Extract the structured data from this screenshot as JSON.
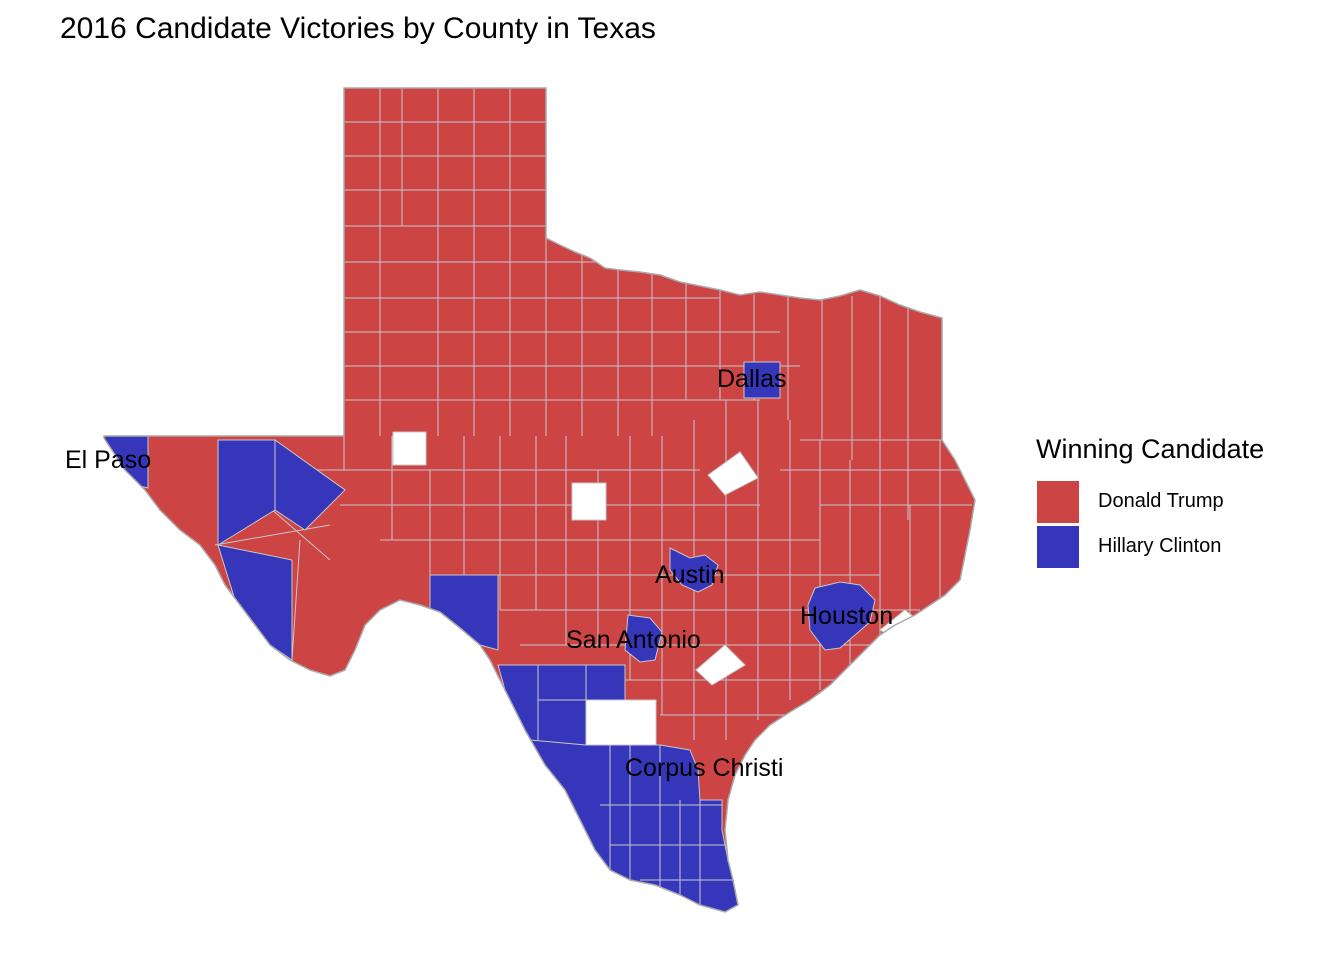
{
  "title": "2016 Candidate Victories by County in Texas",
  "legend": {
    "title": "Winning Candidate",
    "items": [
      {
        "label": "Donald Trump",
        "color": "#cc4444"
      },
      {
        "label": "Hillary Clinton",
        "color": "#3636bb"
      }
    ]
  },
  "cities": [
    {
      "name": "El Paso"
    },
    {
      "name": "Dallas"
    },
    {
      "name": "Austin"
    },
    {
      "name": "Houston"
    },
    {
      "name": "San Antonio"
    },
    {
      "name": "Corpus Christi"
    }
  ],
  "colors": {
    "trump": "#cc4444",
    "clinton": "#3636bb",
    "no_data": "#ffffff",
    "border": "#c8c8c8"
  }
}
